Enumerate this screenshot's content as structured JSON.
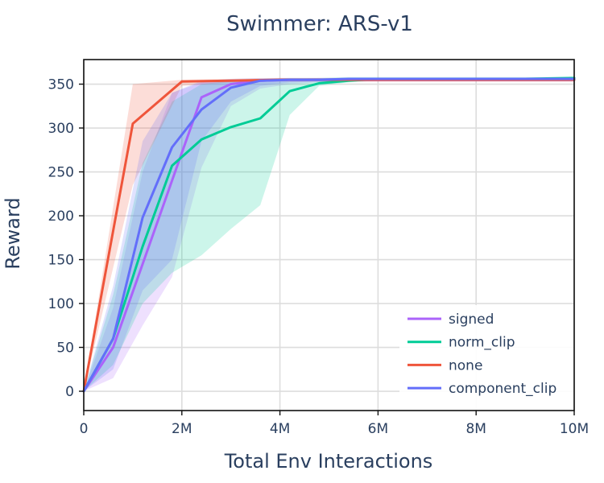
{
  "chart_data": {
    "type": "line",
    "title": "Swimmer: ARS-v1",
    "xlabel": "Total Env Interactions",
    "ylabel": "Reward",
    "xlim": [
      0,
      10000000
    ],
    "ylim": [
      -22,
      378
    ],
    "xticks": [
      0,
      2000000,
      4000000,
      6000000,
      8000000,
      10000000
    ],
    "xtick_labels": [
      "0",
      "2M",
      "4M",
      "6M",
      "8M",
      "10M"
    ],
    "yticks": [
      0,
      50,
      100,
      150,
      200,
      250,
      300,
      350
    ],
    "ytick_labels": [
      "0",
      "50",
      "100",
      "150",
      "200",
      "250",
      "300",
      "350"
    ],
    "grid": true,
    "legend_position": "bottom-right",
    "series": [
      {
        "name": "signed",
        "color": "#ab63fa",
        "x": [
          0,
          600000,
          1200000,
          1800000,
          2400000,
          3000000,
          3600000,
          4200000,
          4800000,
          5400000,
          6000000,
          7000000,
          8000000,
          9000000,
          10000000
        ],
        "y": [
          0,
          50,
          145,
          240,
          335,
          350,
          354,
          355,
          355,
          355,
          355,
          355,
          355,
          355,
          355
        ],
        "lower": [
          0,
          15,
          75,
          130,
          255,
          325,
          345,
          350,
          352,
          353,
          353,
          353,
          353,
          353,
          353
        ],
        "upper": [
          0,
          95,
          250,
          340,
          352,
          355,
          356,
          356,
          357,
          357,
          357,
          357,
          357,
          357,
          357
        ]
      },
      {
        "name": "norm_clip",
        "color": "#00cc96",
        "x": [
          0,
          600000,
          1200000,
          1800000,
          2400000,
          3000000,
          3600000,
          4200000,
          4800000,
          5400000,
          6000000,
          7000000,
          8000000,
          9000000,
          10000000
        ],
        "y": [
          0,
          60,
          165,
          257,
          287,
          301,
          311,
          342,
          351,
          354,
          356,
          356,
          356,
          356,
          357
        ],
        "lower": [
          0,
          30,
          100,
          135,
          155,
          185,
          212,
          315,
          348,
          352,
          354,
          354,
          354,
          354,
          354
        ],
        "upper": [
          0,
          110,
          260,
          330,
          350,
          354,
          356,
          357,
          357,
          358,
          358,
          358,
          358,
          358,
          358
        ]
      },
      {
        "name": "none",
        "color": "#ef553b",
        "x": [
          0,
          1000000,
          2000000,
          3000000,
          4000000,
          5000000,
          6000000,
          7000000,
          8000000,
          9000000,
          10000000
        ],
        "y": [
          0,
          305,
          353,
          354,
          355,
          355,
          355,
          355,
          355,
          355,
          355
        ],
        "lower": [
          0,
          235,
          348,
          352,
          353,
          353,
          353,
          353,
          353,
          353,
          353
        ],
        "upper": [
          0,
          350,
          355,
          356,
          357,
          357,
          357,
          357,
          357,
          357,
          357
        ]
      },
      {
        "name": "component_clip",
        "color": "#636efa",
        "x": [
          0,
          600000,
          1200000,
          1800000,
          2400000,
          3000000,
          3600000,
          4200000,
          4800000,
          5400000,
          6000000,
          7000000,
          8000000,
          9000000,
          10000000
        ],
        "y": [
          0,
          60,
          198,
          278,
          321,
          346,
          354,
          355,
          355,
          356,
          356,
          356,
          356,
          356,
          356
        ],
        "lower": [
          0,
          25,
          115,
          150,
          285,
          330,
          348,
          352,
          353,
          353,
          353,
          353,
          353,
          353,
          353
        ],
        "upper": [
          0,
          120,
          285,
          340,
          354,
          356,
          357,
          357,
          357,
          357,
          357,
          357,
          357,
          357,
          357
        ]
      }
    ]
  }
}
